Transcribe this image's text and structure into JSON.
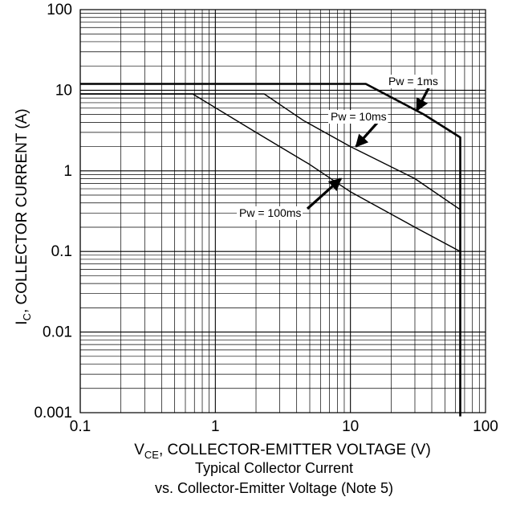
{
  "chart_data": {
    "type": "line",
    "x_scale": "log",
    "y_scale": "log",
    "xlim": [
      0.1,
      100
    ],
    "ylim": [
      0.001,
      100
    ],
    "grid": true,
    "x_ticks": [
      "0.1",
      "1",
      "10",
      "100"
    ],
    "y_ticks": [
      "100",
      "10",
      "1",
      "0.1",
      "0.01",
      "0.001"
    ],
    "ylabel_main": "I",
    "ylabel_sub": "C",
    "ylabel_rest": ", COLLECTOR CURRENT (A)",
    "xlabel_main": "V",
    "xlabel_sub": "CE",
    "xlabel_rest": ", COLLECTOR-EMITTER VOLTAGE (V)",
    "series": [
      {
        "name": "Pw = 1ms",
        "points": [
          [
            0.1,
            12
          ],
          [
            13,
            12
          ],
          [
            35,
            5
          ],
          [
            65,
            2.6
          ],
          [
            65,
            0.0009
          ]
        ]
      },
      {
        "name": "Pw = 10ms",
        "points": [
          [
            0.1,
            9
          ],
          [
            2.3,
            9
          ],
          [
            4.5,
            4.2
          ],
          [
            10,
            2.0
          ],
          [
            30,
            0.8
          ],
          [
            65,
            0.33
          ]
        ]
      },
      {
        "name": "Pw = 100ms",
        "points": [
          [
            0.1,
            9
          ],
          [
            0.68,
            9
          ],
          [
            2,
            3.0
          ],
          [
            5,
            1.2
          ],
          [
            10,
            0.55
          ],
          [
            30,
            0.2
          ],
          [
            65,
            0.1
          ]
        ]
      }
    ],
    "annotations": [
      {
        "text": "Pw = 1ms",
        "arrow_to": [
          31,
          5.6
        ]
      },
      {
        "text": "Pw = 10ms",
        "arrow_to": [
          11,
          2.0
        ]
      },
      {
        "text": "Pw = 100ms",
        "arrow_to": [
          8.5,
          0.8
        ]
      }
    ]
  },
  "caption": {
    "line1": "Typical Collector Current",
    "line2": "vs. Collector-Emitter Voltage (Note 5)"
  }
}
